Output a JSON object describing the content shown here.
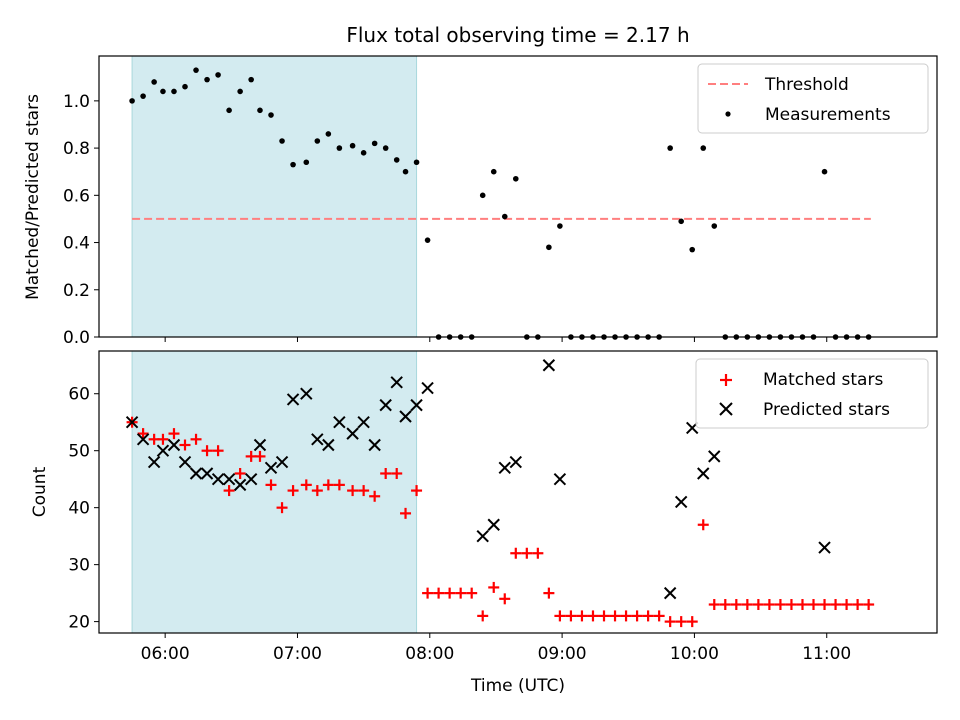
{
  "figure": {
    "title": "Flux total observing time = 2.17 h",
    "xlabel": "Time (UTC)",
    "xticks": [
      "06:00",
      "07:00",
      "08:00",
      "09:00",
      "10:00",
      "11:00"
    ]
  },
  "chart_data": [
    {
      "type": "scatter",
      "panel": "top",
      "ylabel": "Matched/Predicted stars",
      "ylim": [
        0,
        1.19
      ],
      "yticks": [
        "0.0",
        "0.2",
        "0.4",
        "0.6",
        "0.8",
        "1.0"
      ],
      "xlim": [
        "05:30",
        "11:50"
      ],
      "shaded_interval": {
        "start": "05:45",
        "end": "07:54",
        "color": "#d3ebf0"
      },
      "threshold": {
        "name": "Threshold",
        "value": 0.5,
        "color": "#ff7f7f",
        "style": "dashed",
        "x_range": [
          "05:45",
          "11:20"
        ]
      },
      "legend": {
        "position": "top-right",
        "entries": [
          "Threshold",
          "Measurements"
        ]
      },
      "series": [
        {
          "name": "Measurements",
          "marker": "dot",
          "color": "#000000",
          "points": [
            {
              "x": "05:45",
              "y": 1.0
            },
            {
              "x": "05:50",
              "y": 1.02
            },
            {
              "x": "05:55",
              "y": 1.08
            },
            {
              "x": "05:59",
              "y": 1.04
            },
            {
              "x": "06:04",
              "y": 1.04
            },
            {
              "x": "06:09",
              "y": 1.06
            },
            {
              "x": "06:14",
              "y": 1.13
            },
            {
              "x": "06:19",
              "y": 1.09
            },
            {
              "x": "06:24",
              "y": 1.11
            },
            {
              "x": "06:29",
              "y": 0.96
            },
            {
              "x": "06:34",
              "y": 1.04
            },
            {
              "x": "06:39",
              "y": 1.09
            },
            {
              "x": "06:43",
              "y": 0.96
            },
            {
              "x": "06:48",
              "y": 0.94
            },
            {
              "x": "06:53",
              "y": 0.83
            },
            {
              "x": "06:58",
              "y": 0.73
            },
            {
              "x": "07:04",
              "y": 0.74
            },
            {
              "x": "07:09",
              "y": 0.83
            },
            {
              "x": "07:14",
              "y": 0.86
            },
            {
              "x": "07:19",
              "y": 0.8
            },
            {
              "x": "07:25",
              "y": 0.81
            },
            {
              "x": "07:30",
              "y": 0.78
            },
            {
              "x": "07:35",
              "y": 0.82
            },
            {
              "x": "07:40",
              "y": 0.8
            },
            {
              "x": "07:45",
              "y": 0.75
            },
            {
              "x": "07:49",
              "y": 0.7
            },
            {
              "x": "07:54",
              "y": 0.74
            },
            {
              "x": "07:59",
              "y": 0.41
            },
            {
              "x": "08:04",
              "y": 0.0
            },
            {
              "x": "08:09",
              "y": 0.0
            },
            {
              "x": "08:14",
              "y": 0.0
            },
            {
              "x": "08:19",
              "y": 0.0
            },
            {
              "x": "08:24",
              "y": 0.6
            },
            {
              "x": "08:29",
              "y": 0.7
            },
            {
              "x": "08:34",
              "y": 0.51
            },
            {
              "x": "08:39",
              "y": 0.67
            },
            {
              "x": "08:44",
              "y": 0.0
            },
            {
              "x": "08:49",
              "y": 0.0
            },
            {
              "x": "08:54",
              "y": 0.38
            },
            {
              "x": "08:59",
              "y": 0.47
            },
            {
              "x": "09:04",
              "y": 0.0
            },
            {
              "x": "09:09",
              "y": 0.0
            },
            {
              "x": "09:14",
              "y": 0.0
            },
            {
              "x": "09:19",
              "y": 0.0
            },
            {
              "x": "09:24",
              "y": 0.0
            },
            {
              "x": "09:29",
              "y": 0.0
            },
            {
              "x": "09:34",
              "y": 0.0
            },
            {
              "x": "09:39",
              "y": 0.0
            },
            {
              "x": "09:44",
              "y": 0.0
            },
            {
              "x": "09:49",
              "y": 0.8
            },
            {
              "x": "09:54",
              "y": 0.49
            },
            {
              "x": "09:59",
              "y": 0.37
            },
            {
              "x": "10:04",
              "y": 0.8
            },
            {
              "x": "10:09",
              "y": 0.47
            },
            {
              "x": "10:14",
              "y": 0.0
            },
            {
              "x": "10:19",
              "y": 0.0
            },
            {
              "x": "10:24",
              "y": 0.0
            },
            {
              "x": "10:29",
              "y": 0.0
            },
            {
              "x": "10:34",
              "y": 0.0
            },
            {
              "x": "10:39",
              "y": 0.0
            },
            {
              "x": "10:44",
              "y": 0.0
            },
            {
              "x": "10:49",
              "y": 0.0
            },
            {
              "x": "10:54",
              "y": 0.0
            },
            {
              "x": "10:59",
              "y": 0.7
            },
            {
              "x": "11:04",
              "y": 0.0
            },
            {
              "x": "11:09",
              "y": 0.0
            },
            {
              "x": "11:14",
              "y": 0.0
            },
            {
              "x": "11:19",
              "y": 0.0
            }
          ]
        }
      ]
    },
    {
      "type": "scatter",
      "panel": "bottom",
      "ylabel": "Count",
      "ylim": [
        18,
        67.5
      ],
      "yticks": [
        "20",
        "30",
        "40",
        "50",
        "60"
      ],
      "xlim": [
        "05:30",
        "11:50"
      ],
      "shaded_interval": {
        "start": "05:45",
        "end": "07:54",
        "color": "#d3ebf0"
      },
      "legend": {
        "position": "top-right",
        "entries": [
          "Matched stars",
          "Predicted stars"
        ]
      },
      "series": [
        {
          "name": "Matched stars",
          "marker": "plus",
          "color": "#ff0000",
          "points": [
            {
              "x": "05:45",
              "y": 55
            },
            {
              "x": "05:50",
              "y": 53
            },
            {
              "x": "05:55",
              "y": 52
            },
            {
              "x": "05:59",
              "y": 52
            },
            {
              "x": "06:04",
              "y": 53
            },
            {
              "x": "06:09",
              "y": 51
            },
            {
              "x": "06:14",
              "y": 52
            },
            {
              "x": "06:19",
              "y": 50
            },
            {
              "x": "06:24",
              "y": 50
            },
            {
              "x": "06:29",
              "y": 43
            },
            {
              "x": "06:34",
              "y": 46
            },
            {
              "x": "06:39",
              "y": 49
            },
            {
              "x": "06:43",
              "y": 49
            },
            {
              "x": "06:48",
              "y": 44
            },
            {
              "x": "06:53",
              "y": 40
            },
            {
              "x": "06:58",
              "y": 43
            },
            {
              "x": "07:04",
              "y": 44
            },
            {
              "x": "07:09",
              "y": 43
            },
            {
              "x": "07:14",
              "y": 44
            },
            {
              "x": "07:19",
              "y": 44
            },
            {
              "x": "07:25",
              "y": 43
            },
            {
              "x": "07:30",
              "y": 43
            },
            {
              "x": "07:35",
              "y": 42
            },
            {
              "x": "07:40",
              "y": 46
            },
            {
              "x": "07:45",
              "y": 46
            },
            {
              "x": "07:49",
              "y": 39
            },
            {
              "x": "07:54",
              "y": 43
            },
            {
              "x": "07:59",
              "y": 25
            },
            {
              "x": "08:04",
              "y": 25
            },
            {
              "x": "08:09",
              "y": 25
            },
            {
              "x": "08:14",
              "y": 25
            },
            {
              "x": "08:19",
              "y": 25
            },
            {
              "x": "08:24",
              "y": 21
            },
            {
              "x": "08:29",
              "y": 26
            },
            {
              "x": "08:34",
              "y": 24
            },
            {
              "x": "08:39",
              "y": 32
            },
            {
              "x": "08:44",
              "y": 32
            },
            {
              "x": "08:49",
              "y": 32
            },
            {
              "x": "08:54",
              "y": 25
            },
            {
              "x": "08:59",
              "y": 21
            },
            {
              "x": "09:04",
              "y": 21
            },
            {
              "x": "09:09",
              "y": 21
            },
            {
              "x": "09:14",
              "y": 21
            },
            {
              "x": "09:19",
              "y": 21
            },
            {
              "x": "09:24",
              "y": 21
            },
            {
              "x": "09:29",
              "y": 21
            },
            {
              "x": "09:34",
              "y": 21
            },
            {
              "x": "09:39",
              "y": 21
            },
            {
              "x": "09:44",
              "y": 21
            },
            {
              "x": "09:49",
              "y": 20
            },
            {
              "x": "09:54",
              "y": 20
            },
            {
              "x": "09:59",
              "y": 20
            },
            {
              "x": "10:04",
              "y": 37
            },
            {
              "x": "10:09",
              "y": 23
            },
            {
              "x": "10:14",
              "y": 23
            },
            {
              "x": "10:19",
              "y": 23
            },
            {
              "x": "10:24",
              "y": 23
            },
            {
              "x": "10:29",
              "y": 23
            },
            {
              "x": "10:34",
              "y": 23
            },
            {
              "x": "10:39",
              "y": 23
            },
            {
              "x": "10:44",
              "y": 23
            },
            {
              "x": "10:49",
              "y": 23
            },
            {
              "x": "10:54",
              "y": 23
            },
            {
              "x": "10:59",
              "y": 23
            },
            {
              "x": "11:04",
              "y": 23
            },
            {
              "x": "11:09",
              "y": 23
            },
            {
              "x": "11:14",
              "y": 23
            },
            {
              "x": "11:19",
              "y": 23
            }
          ]
        },
        {
          "name": "Predicted stars",
          "marker": "x",
          "color": "#000000",
          "points": [
            {
              "x": "05:45",
              "y": 55
            },
            {
              "x": "05:50",
              "y": 52
            },
            {
              "x": "05:55",
              "y": 48
            },
            {
              "x": "05:59",
              "y": 50
            },
            {
              "x": "06:04",
              "y": 51
            },
            {
              "x": "06:09",
              "y": 48
            },
            {
              "x": "06:14",
              "y": 46
            },
            {
              "x": "06:19",
              "y": 46
            },
            {
              "x": "06:24",
              "y": 45
            },
            {
              "x": "06:29",
              "y": 45
            },
            {
              "x": "06:34",
              "y": 44
            },
            {
              "x": "06:39",
              "y": 45
            },
            {
              "x": "06:43",
              "y": 51
            },
            {
              "x": "06:48",
              "y": 47
            },
            {
              "x": "06:53",
              "y": 48
            },
            {
              "x": "06:58",
              "y": 59
            },
            {
              "x": "07:04",
              "y": 60
            },
            {
              "x": "07:09",
              "y": 52
            },
            {
              "x": "07:14",
              "y": 51
            },
            {
              "x": "07:19",
              "y": 55
            },
            {
              "x": "07:25",
              "y": 53
            },
            {
              "x": "07:30",
              "y": 55
            },
            {
              "x": "07:35",
              "y": 51
            },
            {
              "x": "07:40",
              "y": 58
            },
            {
              "x": "07:45",
              "y": 62
            },
            {
              "x": "07:49",
              "y": 56
            },
            {
              "x": "07:54",
              "y": 58
            },
            {
              "x": "07:59",
              "y": 61
            },
            {
              "x": "08:24",
              "y": 35
            },
            {
              "x": "08:29",
              "y": 37
            },
            {
              "x": "08:34",
              "y": 47
            },
            {
              "x": "08:39",
              "y": 48
            },
            {
              "x": "08:54",
              "y": 65
            },
            {
              "x": "08:59",
              "y": 45
            },
            {
              "x": "09:49",
              "y": 25
            },
            {
              "x": "09:54",
              "y": 41
            },
            {
              "x": "09:59",
              "y": 54
            },
            {
              "x": "10:04",
              "y": 46
            },
            {
              "x": "10:09",
              "y": 49
            },
            {
              "x": "10:59",
              "y": 33
            }
          ]
        }
      ]
    }
  ]
}
